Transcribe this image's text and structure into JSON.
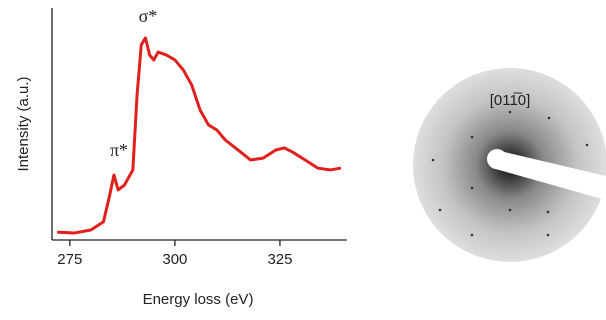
{
  "chart_data": {
    "type": "line",
    "x_label": "Energy loss (eV)",
    "y_label": "Intensity (a.u.)",
    "annotations": [
      "σ*",
      "π*"
    ],
    "x": [
      272,
      276,
      280,
      283,
      284.5,
      285.5,
      286.5,
      288,
      290,
      291,
      292,
      293,
      294,
      295,
      296,
      298,
      300,
      302,
      304,
      306,
      308,
      310,
      312,
      315,
      318,
      321,
      324,
      326,
      328,
      331,
      334,
      337,
      339.5
    ],
    "series": [
      {
        "color": "#e0201c",
        "values": [
          0.034,
          0.03,
          0.043,
          0.078,
          0.194,
          0.28,
          0.216,
          0.237,
          0.302,
          0.625,
          0.841,
          0.871,
          0.797,
          0.776,
          0.81,
          0.797,
          0.776,
          0.733,
          0.668,
          0.56,
          0.496,
          0.474,
          0.431,
          0.388,
          0.345,
          0.353,
          0.388,
          0.397,
          0.379,
          0.345,
          0.31,
          0.302,
          0.31
        ]
      }
    ],
    "xlim": [
      271,
      340
    ],
    "xticks": [
      275,
      300,
      325
    ],
    "ylim": [
      0,
      1
    ]
  },
  "image": {
    "label": "[011̅0]"
  }
}
